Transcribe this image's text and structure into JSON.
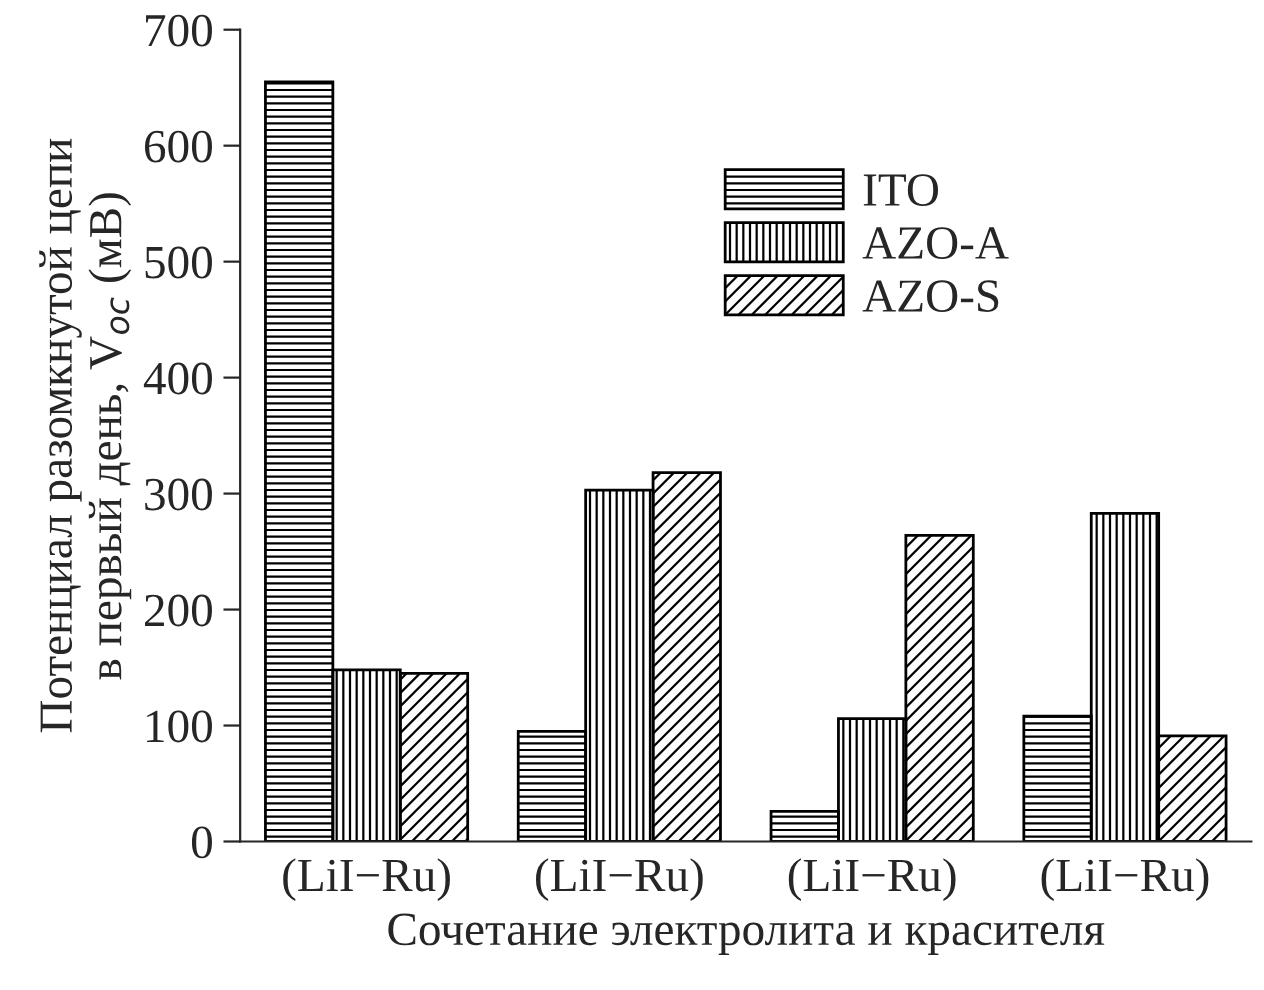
{
  "chart_data": {
    "type": "bar",
    "xlabel": "Сочетание электролита и красителя",
    "ylabel": "Потенциал разомкнутой цепи\nв первый день, V$_{oc}$ (мВ)",
    "categories": [
      "(LiI−Ru)",
      "(LiI−Ru)",
      "(LiI−Ru)",
      "(LiI−Ru)"
    ],
    "series": [
      {
        "name": "ITO",
        "color": "#000000",
        "values": [
          655,
          95,
          26,
          108
        ]
      },
      {
        "name": "AZO-A",
        "color": "#000000",
        "values": [
          148,
          303,
          106,
          283
        ]
      },
      {
        "name": "AZO-S",
        "color": "#000000",
        "values": [
          145,
          318,
          264,
          91
        ]
      }
    ],
    "ylim": [
      0,
      700
    ],
    "yticks": [
      0,
      100,
      200,
      300,
      400,
      500,
      600,
      700
    ],
    "grid": false,
    "legend": "top"
  }
}
